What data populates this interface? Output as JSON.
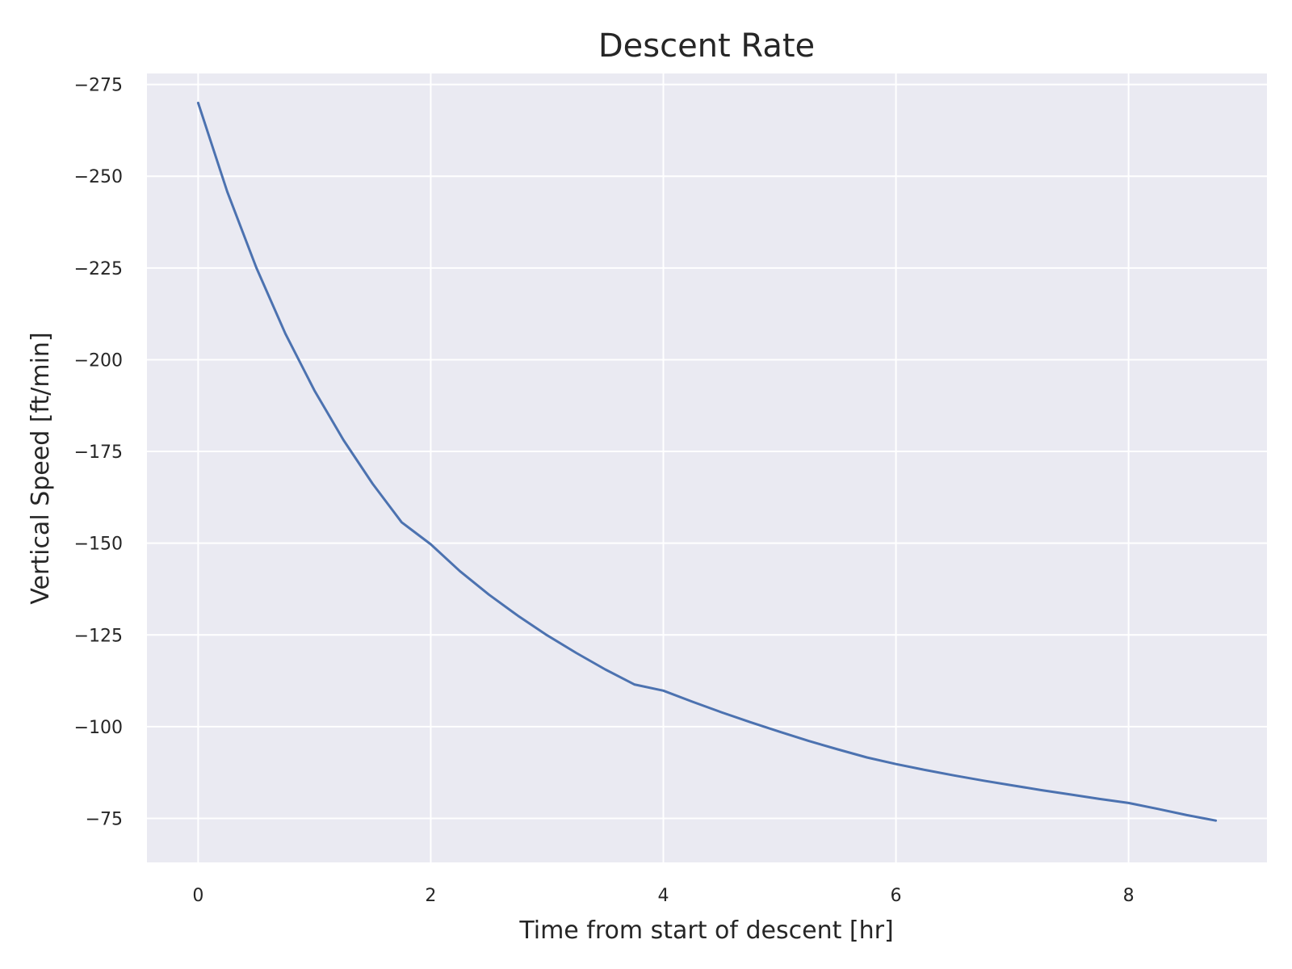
{
  "chart_data": {
    "type": "line",
    "title": "Descent Rate",
    "xlabel": "Time from start of descent [hr]",
    "ylabel": "Vertical Speed [ft/min]",
    "xlim": [
      -0.44,
      9.19
    ],
    "ylim": [
      -278,
      -63
    ],
    "y_inverted": true,
    "grid": true,
    "x_ticks": [
      0,
      2,
      4,
      6,
      8
    ],
    "x_tick_labels": [
      "0",
      "2",
      "4",
      "6",
      "8"
    ],
    "y_ticks": [
      -275,
      -250,
      -225,
      -200,
      -175,
      -150,
      -125,
      -100,
      -75
    ],
    "y_tick_labels": [
      "−275",
      "−250",
      "−225",
      "−200",
      "−175",
      "−150",
      "−125",
      "−100",
      "−75"
    ],
    "colors": {
      "plot_background": "#eaeaf2",
      "grid": "#ffffff",
      "text": "#262626"
    },
    "series": [
      {
        "color": "#4c72b0",
        "x": [
          0,
          0.25,
          0.5,
          0.75,
          1.0,
          1.25,
          1.5,
          1.75,
          2.0,
          2.25,
          2.5,
          2.75,
          3.0,
          3.25,
          3.5,
          3.75,
          4.0,
          4.25,
          4.5,
          4.75,
          5.0,
          5.25,
          5.5,
          5.75,
          6.0,
          6.25,
          6.5,
          6.75,
          7.0,
          7.25,
          7.5,
          7.75,
          8.0,
          8.25,
          8.5,
          8.75
        ],
        "y": [
          -270,
          -245.8,
          -225.1,
          -207.1,
          -191.6,
          -178.1,
          -166.2,
          -155.7,
          -149.7,
          -142.4,
          -136.0,
          -130.2,
          -124.9,
          -120.1,
          -115.6,
          -111.5,
          -109.8,
          -106.8,
          -103.9,
          -101.2,
          -98.6,
          -96.1,
          -93.8,
          -91.6,
          -89.8,
          -88.2,
          -86.7,
          -85.3,
          -84.0,
          -82.7,
          -81.5,
          -80.3,
          -79.2,
          -77.6,
          -75.9,
          -74.4
        ]
      }
    ]
  }
}
